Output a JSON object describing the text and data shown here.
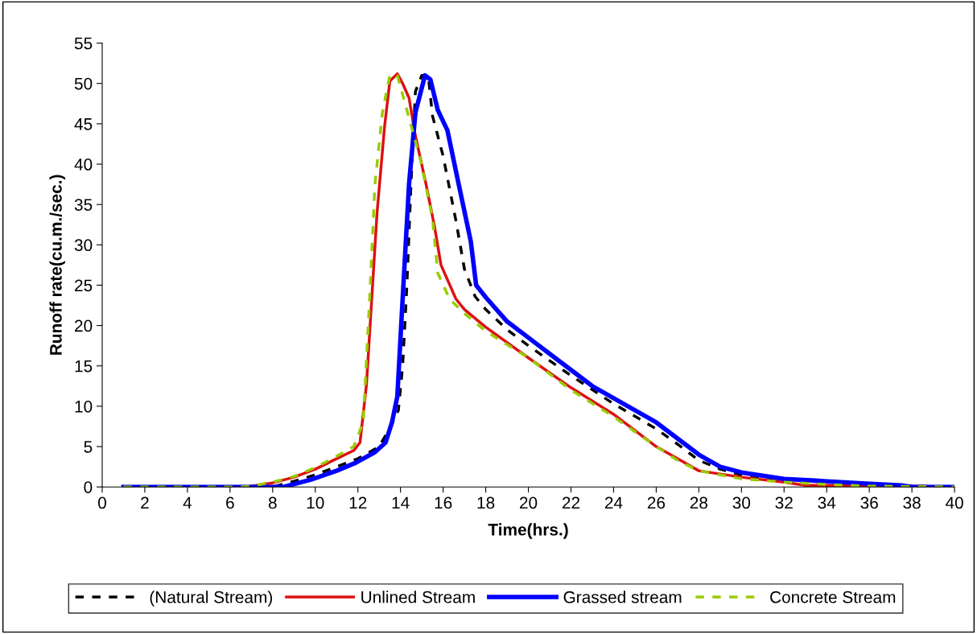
{
  "chart_data": {
    "type": "line",
    "xlabel": "Time(hrs.)",
    "ylabel": "Runoff rate(cu.m./sec.)",
    "xlim": [
      0,
      40
    ],
    "xticks": [
      0,
      2,
      4,
      6,
      8,
      10,
      12,
      14,
      16,
      18,
      20,
      22,
      24,
      26,
      28,
      30,
      32,
      34,
      36,
      38,
      40
    ],
    "ylim": [
      0,
      55
    ],
    "yticks": [
      0,
      5,
      10,
      15,
      20,
      25,
      30,
      35,
      40,
      45,
      50,
      55
    ],
    "grid": false,
    "legend": "bottom",
    "marker": "none",
    "series": [
      {
        "name": "(Natural Stream)",
        "color": "#000000",
        "line_style": "dashed",
        "x": [
          1,
          8,
          9,
          10,
          11,
          12,
          13,
          13.5,
          13.9,
          14.1,
          14.3,
          14.5,
          14.7,
          15,
          15.3,
          15.5,
          16,
          16.6,
          17,
          17.5,
          18,
          19,
          20,
          22,
          24,
          26,
          27,
          28,
          29,
          30,
          32,
          34,
          36,
          38,
          40
        ],
        "values": [
          0,
          0,
          0.7,
          1.5,
          2.5,
          3.5,
          5,
          7.3,
          9.5,
          15,
          25,
          38,
          49,
          51,
          51,
          46,
          41,
          33,
          27,
          23.6,
          22,
          19.5,
          17.5,
          13.8,
          10.3,
          7.2,
          5.3,
          3.3,
          2.2,
          1.5,
          0.8,
          0.4,
          0.2,
          0.1,
          0
        ]
      },
      {
        "name": "Unlined Stream",
        "color": "#dd1111",
        "line_style": "solid",
        "x": [
          1,
          6.5,
          7,
          8,
          9,
          10,
          11,
          11.8,
          12.1,
          12.4,
          12.65,
          12.9,
          13.25,
          13.5,
          13.85,
          14.1,
          14.4,
          14.7,
          15.2,
          15.6,
          15.9,
          16.6,
          17,
          18,
          20,
          22,
          24,
          26,
          27,
          28,
          30,
          32,
          33,
          36,
          40
        ],
        "values": [
          0,
          0,
          0.1,
          0.5,
          1.2,
          2.2,
          3.5,
          4.5,
          5.5,
          12.6,
          23.3,
          34,
          44.6,
          50.3,
          51.2,
          50,
          48.2,
          43.5,
          37.5,
          32.2,
          27.5,
          23.3,
          22,
          19.8,
          16,
          12.3,
          9,
          5,
          3.5,
          2,
          1.2,
          0.6,
          0.2,
          0.2,
          0
        ]
      },
      {
        "name": "Grassed stream",
        "color": "#0000ff",
        "line_style": "solid",
        "x": [
          1,
          8.5,
          9.8,
          11,
          11.9,
          12.8,
          13.3,
          13.6,
          13.85,
          14.1,
          14.4,
          14.7,
          15.15,
          15.4,
          15.75,
          16.2,
          16.7,
          17.3,
          17.55,
          18,
          19,
          20,
          21,
          22,
          23,
          24,
          25,
          26,
          27,
          28,
          29,
          30,
          32,
          34,
          36,
          37.5,
          38,
          40
        ],
        "values": [
          0,
          0,
          0.9,
          2,
          3,
          4.3,
          5.5,
          8,
          11.2,
          23.3,
          37.5,
          46.4,
          51,
          50.5,
          46.7,
          44.2,
          37.9,
          30.4,
          25,
          23.5,
          20.5,
          18.5,
          16.5,
          14.5,
          12.5,
          11,
          9.5,
          8,
          6,
          4,
          2.5,
          1.8,
          1,
          0.7,
          0.4,
          0.2,
          0,
          0
        ]
      },
      {
        "name": "Concrete Stream",
        "color": "#99cc00",
        "line_style": "dashed",
        "x": [
          1,
          6.5,
          7,
          8,
          9,
          10,
          11,
          11.8,
          12.25,
          12.55,
          12.8,
          13.15,
          13.5,
          13.85,
          14.3,
          14.95,
          15.5,
          15.75,
          16.3,
          17,
          18,
          20,
          22,
          24,
          26,
          27,
          28,
          30,
          32,
          34,
          36,
          40
        ],
        "values": [
          0,
          0,
          0.1,
          0.6,
          1.3,
          2.4,
          3.8,
          5,
          8,
          23.3,
          37.5,
          46.4,
          51,
          51,
          46.7,
          40.4,
          33.3,
          26.5,
          23.3,
          21.5,
          19.3,
          16,
          12,
          8.7,
          5,
          3.3,
          2,
          1,
          0.6,
          0.3,
          0.1,
          0
        ]
      }
    ]
  }
}
